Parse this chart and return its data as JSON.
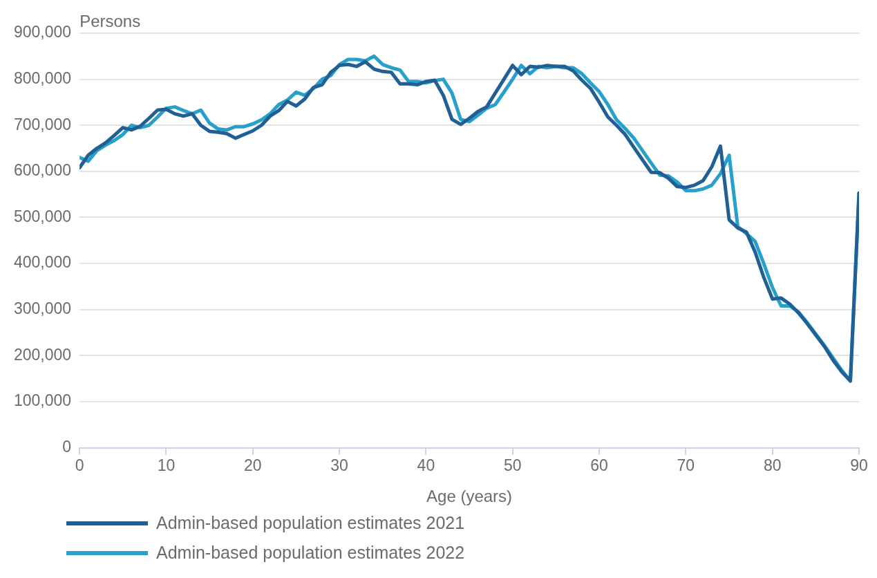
{
  "chart_data": {
    "type": "line",
    "ylabel": "Persons",
    "xlabel": "Age (years)",
    "xlim": [
      0,
      90
    ],
    "xticks": [
      0,
      10,
      20,
      30,
      40,
      50,
      60,
      70,
      80,
      90
    ],
    "ylim": [
      0,
      900000
    ],
    "yticks": [
      0,
      {
        "value": 100000,
        "label": "100,000"
      },
      {
        "value": 200000,
        "label": "200,000"
      },
      {
        "value": 300000,
        "label": "300,000"
      },
      {
        "value": 400000,
        "label": "400,000"
      },
      {
        "value": 500000,
        "label": "500,000"
      },
      {
        "value": 600000,
        "label": "600,000"
      },
      {
        "value": 700000,
        "label": "700,000"
      },
      {
        "value": 800000,
        "label": "800,000"
      },
      {
        "value": 900000,
        "label": "900,000"
      }
    ],
    "grid": "y",
    "legend": "bottom left",
    "marker": "none",
    "line_style": "solid",
    "x": [
      0,
      1,
      2,
      3,
      4,
      5,
      6,
      7,
      8,
      9,
      10,
      11,
      12,
      13,
      14,
      15,
      16,
      17,
      18,
      19,
      20,
      21,
      22,
      23,
      24,
      25,
      26,
      27,
      28,
      29,
      30,
      31,
      32,
      33,
      34,
      35,
      36,
      37,
      38,
      39,
      40,
      41,
      42,
      43,
      44,
      45,
      46,
      47,
      48,
      49,
      50,
      51,
      52,
      53,
      54,
      55,
      56,
      57,
      58,
      59,
      60,
      61,
      62,
      63,
      64,
      65,
      66,
      67,
      68,
      69,
      70,
      71,
      72,
      73,
      74,
      75,
      76,
      77,
      78,
      79,
      80,
      81,
      82,
      83,
      84,
      85,
      86,
      87,
      88,
      89,
      90
    ],
    "series": [
      {
        "name": "Admin-based population estimates 2021",
        "color": "#206095",
        "values": [
          608000,
          635000,
          650000,
          662000,
          678000,
          695000,
          690000,
          698000,
          715000,
          733000,
          735000,
          725000,
          720000,
          725000,
          700000,
          687000,
          685000,
          682000,
          672000,
          680000,
          688000,
          700000,
          720000,
          732000,
          752000,
          742000,
          757000,
          782000,
          788000,
          815000,
          830000,
          832000,
          828000,
          838000,
          822000,
          817000,
          815000,
          790000,
          790000,
          788000,
          795000,
          798000,
          765000,
          713000,
          702000,
          715000,
          730000,
          740000,
          770000,
          800000,
          830000,
          810000,
          828000,
          826000,
          830000,
          828000,
          828000,
          818000,
          798000,
          780000,
          750000,
          718000,
          700000,
          680000,
          652000,
          625000,
          598000,
          597000,
          585000,
          567000,
          565000,
          570000,
          580000,
          610000,
          655000,
          495000,
          477000,
          468000,
          425000,
          370000,
          323000,
          325000,
          312000,
          293000,
          270000,
          245000,
          220000,
          190000,
          165000,
          145000,
          553000
        ]
      },
      {
        "name": "Admin-based population estimates 2022",
        "color": "#27a0cc",
        "values": [
          630000,
          622000,
          645000,
          657000,
          667000,
          680000,
          700000,
          695000,
          700000,
          718000,
          737000,
          740000,
          732000,
          725000,
          733000,
          705000,
          692000,
          690000,
          697000,
          697000,
          703000,
          712000,
          725000,
          745000,
          755000,
          772000,
          765000,
          780000,
          800000,
          808000,
          832000,
          843000,
          843000,
          840000,
          850000,
          832000,
          825000,
          820000,
          795000,
          795000,
          792000,
          797000,
          800000,
          770000,
          713000,
          708000,
          722000,
          737000,
          745000,
          772000,
          800000,
          830000,
          812000,
          828000,
          825000,
          828000,
          825000,
          825000,
          812000,
          792000,
          773000,
          745000,
          712000,
          693000,
          672000,
          645000,
          618000,
          592000,
          590000,
          577000,
          558000,
          558000,
          562000,
          570000,
          595000,
          635000,
          480000,
          465000,
          448000,
          400000,
          348000,
          308000,
          308000,
          295000,
          272000,
          247000,
          222000,
          195000,
          168000,
          145000,
          553000
        ]
      }
    ]
  }
}
